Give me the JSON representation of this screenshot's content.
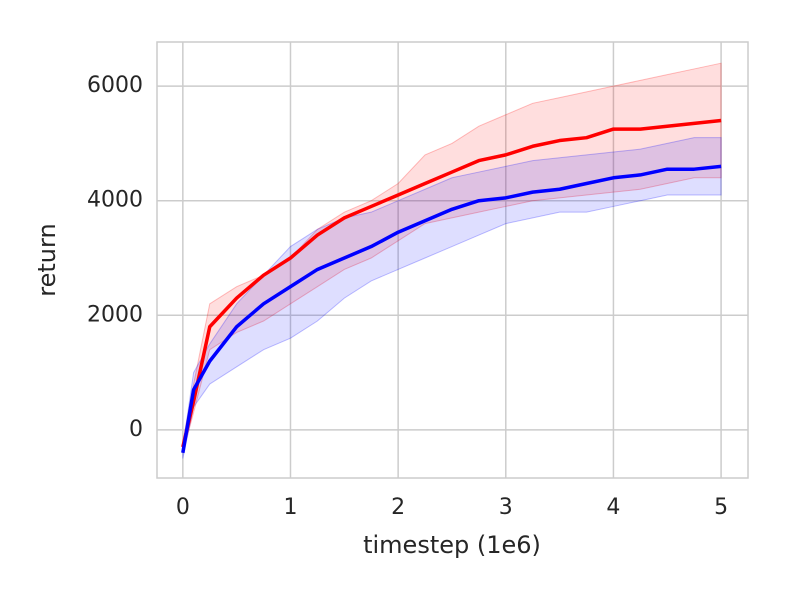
{
  "chart_data": {
    "type": "line",
    "xlabel": "timestep (1e6)",
    "ylabel": "return",
    "x": [
      0,
      0.1,
      0.25,
      0.5,
      0.75,
      1,
      1.25,
      1.5,
      1.75,
      2,
      2.25,
      2.5,
      2.75,
      3,
      3.25,
      3.5,
      3.75,
      4,
      4.25,
      4.5,
      4.75,
      5
    ],
    "series": [
      {
        "color": "#ff0000",
        "values": [
          -300,
          500,
          1800,
          2300,
          2700,
          3000,
          3400,
          3700,
          3900,
          4100,
          4300,
          4500,
          4700,
          4800,
          4950,
          5050,
          5100,
          5250,
          5250,
          5300,
          5350,
          5400
        ],
        "lower": [
          -400,
          300,
          1400,
          1700,
          1900,
          2200,
          2500,
          2800,
          3000,
          3300,
          3600,
          3700,
          3800,
          3900,
          4000,
          4050,
          4100,
          4150,
          4200,
          4300,
          4400,
          4400
        ],
        "upper": [
          -200,
          800,
          2200,
          2500,
          2700,
          3000,
          3500,
          3800,
          4000,
          4300,
          4800,
          5000,
          5300,
          5500,
          5700,
          5800,
          5900,
          6000,
          6100,
          6200,
          6300,
          6400
        ]
      },
      {
        "color": "#0000ff",
        "values": [
          -400,
          700,
          1200,
          1800,
          2200,
          2500,
          2800,
          3000,
          3200,
          3450,
          3650,
          3850,
          4000,
          4050,
          4150,
          4200,
          4300,
          4400,
          4450,
          4550,
          4550,
          4600
        ],
        "lower": [
          -500,
          400,
          800,
          1100,
          1400,
          1600,
          1900,
          2300,
          2600,
          2800,
          3000,
          3200,
          3400,
          3600,
          3700,
          3800,
          3800,
          3900,
          4000,
          4100,
          4100,
          4100
        ],
        "upper": [
          -300,
          1000,
          1500,
          2200,
          2700,
          3200,
          3500,
          3700,
          3800,
          4000,
          4200,
          4400,
          4500,
          4600,
          4700,
          4750,
          4800,
          4850,
          4900,
          5000,
          5100,
          5100
        ]
      }
    ],
    "xlim": [
      -0.24,
      5.25
    ],
    "ylim": [
      -840,
      6770
    ],
    "xticks": [
      0,
      1,
      2,
      3,
      4,
      5
    ],
    "yticks": [
      0,
      2000,
      4000,
      6000
    ],
    "grid": true
  }
}
